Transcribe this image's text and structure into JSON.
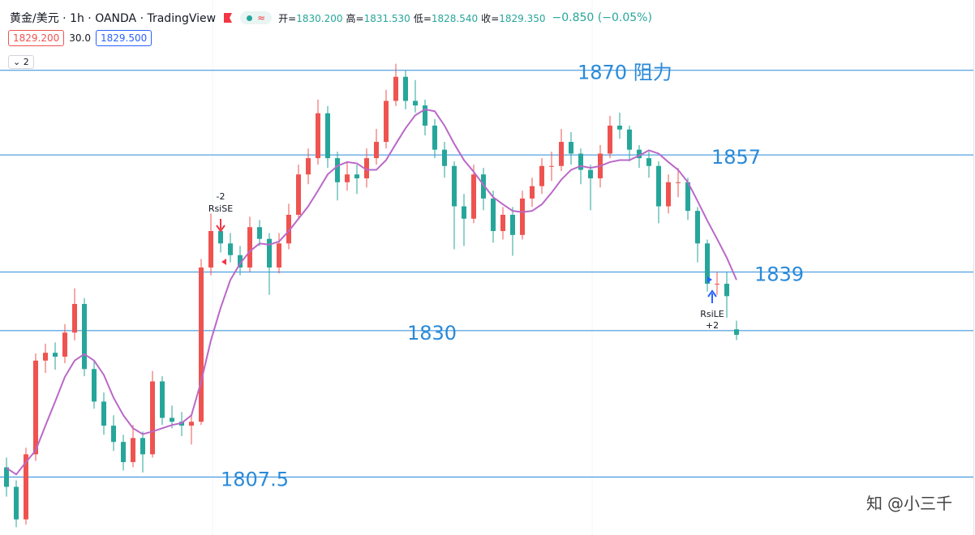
{
  "chart_data": {
    "type": "candlestick",
    "title": "黄金/美元 · 1h · OANDA · TradingView",
    "ohlc": [
      {
        "label": "开",
        "value": "1830.200"
      },
      {
        "label": "高",
        "value": "1831.530"
      },
      {
        "label": "低",
        "value": "1828.540"
      },
      {
        "label": "收",
        "value": "1829.350"
      }
    ],
    "change": "−0.850 (−0.05%)",
    "bid": "1829.200",
    "spread": "30.0",
    "ask": "1829.500",
    "indicator_count": 2,
    "watermark": "@小三千",
    "up_color": "#ef5350",
    "down_color": "#26a69a",
    "ma_color": "#ba68c8",
    "level_color": "#2a8ad8",
    "ylim": [
      1798.6,
      1880.8
    ],
    "levels": [
      {
        "value": 1870,
        "label": "1870 阻力"
      },
      {
        "value": 1857,
        "label": "1857"
      },
      {
        "value": 1839,
        "label": "1839"
      },
      {
        "value": 1830,
        "label": "1830"
      },
      {
        "value": 1807.5,
        "label": "1807.5"
      }
    ],
    "signals": [
      {
        "name": "RsiSE",
        "qty": "-2"
      },
      {
        "name": "RsiLE",
        "qty": "+2"
      }
    ],
    "candles": [
      [
        1809.0,
        1810.5,
        1804.5,
        1806.0
      ],
      [
        1806.0,
        1807.0,
        1799.8,
        1801.0
      ],
      [
        1801.0,
        1812.0,
        1800.2,
        1811.0
      ],
      [
        1811.0,
        1826.5,
        1810.0,
        1825.4
      ],
      [
        1825.4,
        1828.0,
        1823.5,
        1826.6
      ],
      [
        1826.6,
        1828.2,
        1824.0,
        1826.0
      ],
      [
        1826.0,
        1831.0,
        1825.0,
        1829.7
      ],
      [
        1829.7,
        1836.5,
        1828.5,
        1834.1
      ],
      [
        1834.1,
        1835.0,
        1823.0,
        1824.1
      ],
      [
        1824.1,
        1825.5,
        1818.0,
        1819.1
      ],
      [
        1819.1,
        1820.5,
        1814.0,
        1815.4
      ],
      [
        1815.4,
        1817.0,
        1811.5,
        1812.9
      ],
      [
        1812.9,
        1814.0,
        1808.5,
        1809.8
      ],
      [
        1809.8,
        1815.5,
        1809.0,
        1813.5
      ],
      [
        1813.5,
        1814.5,
        1808.2,
        1811.0
      ],
      [
        1811.0,
        1823.8,
        1810.5,
        1822.2
      ],
      [
        1822.2,
        1823.0,
        1815.5,
        1816.6
      ],
      [
        1816.6,
        1818.5,
        1815.0,
        1816.0
      ],
      [
        1816.0,
        1817.5,
        1813.8,
        1815.4
      ],
      [
        1815.4,
        1817.0,
        1812.5,
        1816.0
      ],
      [
        1816.0,
        1841.0,
        1815.5,
        1839.7
      ],
      [
        1839.7,
        1848.0,
        1838.5,
        1845.3
      ],
      [
        1845.3,
        1846.5,
        1842.0,
        1843.4
      ],
      [
        1843.4,
        1845.0,
        1840.5,
        1841.6
      ],
      [
        1841.6,
        1843.0,
        1838.5,
        1839.7
      ],
      [
        1839.7,
        1847.5,
        1839.0,
        1845.9
      ],
      [
        1845.9,
        1847.0,
        1843.0,
        1844.1
      ],
      [
        1844.1,
        1845.0,
        1835.5,
        1839.7
      ],
      [
        1839.7,
        1845.0,
        1838.8,
        1843.4
      ],
      [
        1843.4,
        1849.5,
        1842.5,
        1847.8
      ],
      [
        1847.8,
        1855.5,
        1847.0,
        1854.0
      ],
      [
        1854.0,
        1858.0,
        1852.5,
        1856.5
      ],
      [
        1856.5,
        1865.5,
        1855.5,
        1863.4
      ],
      [
        1863.4,
        1864.5,
        1855.0,
        1856.5
      ],
      [
        1856.5,
        1857.5,
        1850.0,
        1852.8
      ],
      [
        1852.8,
        1856.0,
        1851.5,
        1854.0
      ],
      [
        1854.0,
        1855.5,
        1851.0,
        1853.4
      ],
      [
        1853.4,
        1858.0,
        1852.0,
        1856.5
      ],
      [
        1856.5,
        1861.0,
        1855.5,
        1859.0
      ],
      [
        1859.0,
        1867.0,
        1858.0,
        1865.3
      ],
      [
        1865.3,
        1871.0,
        1864.5,
        1869.0
      ],
      [
        1869.0,
        1870.0,
        1864.0,
        1865.3
      ],
      [
        1865.3,
        1868.5,
        1863.5,
        1864.6
      ],
      [
        1864.6,
        1865.5,
        1860.0,
        1861.5
      ],
      [
        1861.5,
        1862.5,
        1856.5,
        1857.8
      ],
      [
        1857.8,
        1859.0,
        1853.5,
        1855.3
      ],
      [
        1855.3,
        1856.0,
        1842.5,
        1849.1
      ],
      [
        1849.1,
        1851.0,
        1843.0,
        1847.2
      ],
      [
        1847.2,
        1855.5,
        1846.5,
        1854.0
      ],
      [
        1854.0,
        1855.0,
        1848.5,
        1850.3
      ],
      [
        1850.3,
        1851.5,
        1843.5,
        1845.3
      ],
      [
        1845.3,
        1849.0,
        1844.0,
        1847.8
      ],
      [
        1847.8,
        1849.0,
        1841.5,
        1844.7
      ],
      [
        1844.7,
        1851.5,
        1844.0,
        1850.3
      ],
      [
        1850.3,
        1853.5,
        1849.0,
        1852.2
      ],
      [
        1852.2,
        1856.5,
        1851.0,
        1855.3
      ],
      [
        1855.3,
        1857.5,
        1853.0,
        1855.3
      ],
      [
        1855.3,
        1861.0,
        1854.5,
        1859.0
      ],
      [
        1859.0,
        1860.5,
        1855.5,
        1857.2
      ],
      [
        1857.2,
        1858.0,
        1852.5,
        1854.7
      ],
      [
        1854.7,
        1855.5,
        1848.5,
        1853.4
      ],
      [
        1853.4,
        1858.5,
        1852.0,
        1857.2
      ],
      [
        1857.2,
        1863.0,
        1856.5,
        1861.5
      ],
      [
        1861.5,
        1863.5,
        1859.5,
        1860.9
      ],
      [
        1860.9,
        1861.5,
        1856.0,
        1857.8
      ],
      [
        1857.8,
        1858.5,
        1855.0,
        1856.5
      ],
      [
        1856.5,
        1857.5,
        1853.5,
        1855.3
      ],
      [
        1855.3,
        1856.0,
        1846.5,
        1849.1
      ],
      [
        1849.1,
        1854.0,
        1848.0,
        1852.8
      ],
      [
        1852.8,
        1855.0,
        1850.5,
        1852.8
      ],
      [
        1852.8,
        1853.5,
        1847.0,
        1848.4
      ],
      [
        1848.4,
        1849.0,
        1840.5,
        1843.4
      ],
      [
        1843.4,
        1844.0,
        1836.0,
        1837.2
      ],
      [
        1837.2,
        1839.0,
        1835.5,
        1837.2
      ],
      [
        1837.2,
        1839.0,
        1832.0,
        1835.3
      ],
      [
        1830.2,
        1831.53,
        1828.54,
        1829.35
      ]
    ],
    "ma": [
      1808.9,
      1807.9,
      1809.8,
      1811.6,
      1815.4,
      1819.1,
      1822.9,
      1825.4,
      1826.4,
      1825.4,
      1823.2,
      1819.7,
      1817.0,
      1815.0,
      1814.1,
      1814.5,
      1815.0,
      1815.5,
      1815.8,
      1817.0,
      1822.2,
      1828.5,
      1833.5,
      1837.8,
      1840.3,
      1842.2,
      1843.4,
      1843.2,
      1843.7,
      1845.3,
      1847.2,
      1849.1,
      1851.5,
      1854.0,
      1855.3,
      1855.9,
      1855.7,
      1854.7,
      1854.7,
      1856.2,
      1858.7,
      1861.1,
      1863.1,
      1864.0,
      1863.7,
      1861.5,
      1858.7,
      1856.2,
      1854.4,
      1852.4,
      1850.5,
      1849.4,
      1848.4,
      1848.2,
      1848.4,
      1849.4,
      1851.2,
      1853.2,
      1854.7,
      1855.3,
      1855.0,
      1855.3,
      1855.9,
      1856.2,
      1856.2,
      1856.9,
      1857.7,
      1857.2,
      1855.9,
      1854.7,
      1852.8,
      1849.9,
      1846.9,
      1844.1,
      1841.2,
      1837.8
    ]
  }
}
